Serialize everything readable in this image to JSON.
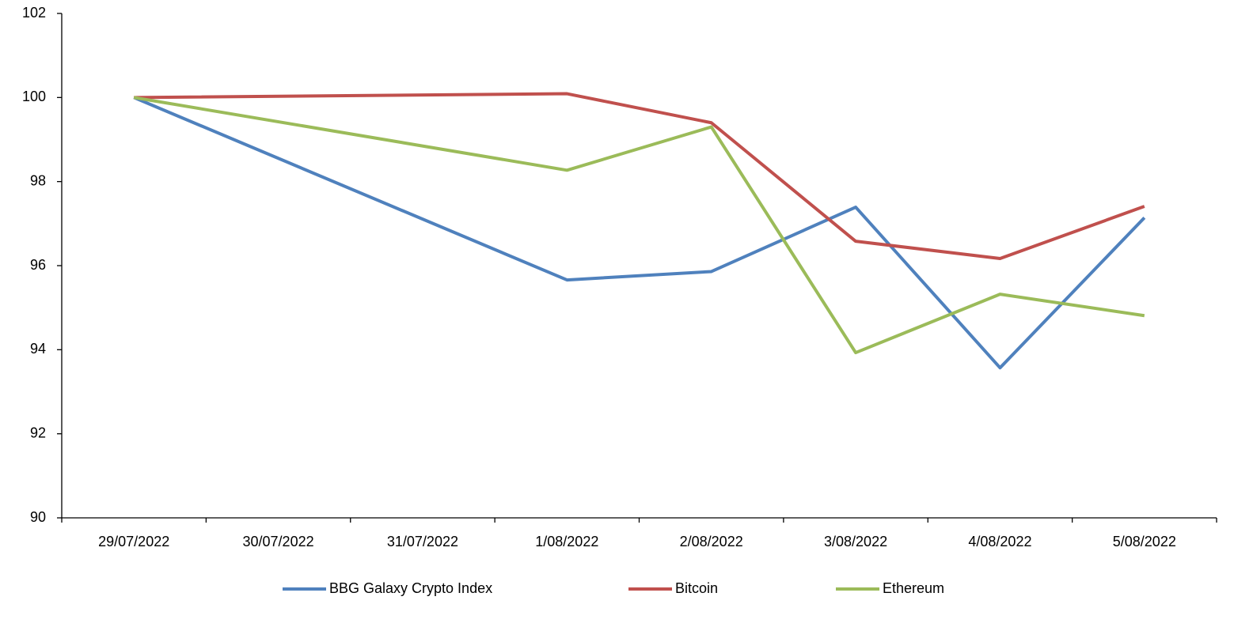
{
  "chart_data": {
    "type": "line",
    "xticks": [
      "29/07/2022",
      "30/07/2022",
      "31/07/2022",
      "1/08/2022",
      "2/08/2022",
      "3/08/2022",
      "4/08/2022",
      "5/08/2022"
    ],
    "x": [
      "29/07/2022",
      "1/08/2022",
      "2/08/2022",
      "3/08/2022",
      "4/08/2022",
      "5/08/2022"
    ],
    "series": [
      {
        "name": "BBG Galaxy Crypto Index",
        "color": "#4f81bd",
        "values": [
          100,
          95.66,
          95.86,
          97.39,
          93.57,
          97.14
        ]
      },
      {
        "name": "Bitcoin",
        "color": "#c0504d",
        "values": [
          100,
          100.09,
          99.4,
          96.58,
          96.17,
          97.41
        ]
      },
      {
        "name": "Ethereum",
        "color": "#9bbb59",
        "values": [
          100,
          98.27,
          99.3,
          93.93,
          95.32,
          94.81
        ]
      }
    ],
    "ylim": [
      90,
      102
    ],
    "yticks": [
      90,
      92,
      94,
      96,
      98,
      100,
      102
    ],
    "grid": false,
    "legend": "bottom"
  }
}
